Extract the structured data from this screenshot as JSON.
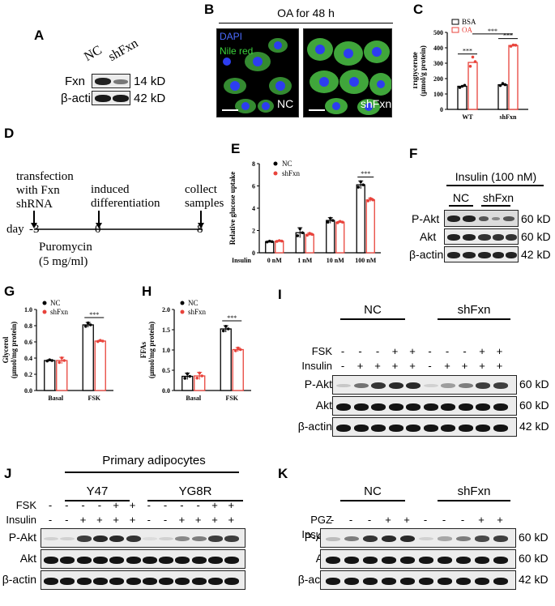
{
  "panels": {
    "A": {
      "label": "A",
      "cond": [
        "NC",
        "shFxn"
      ],
      "rows": [
        "Fxn",
        "β-actin"
      ],
      "sizes": [
        "14 kD",
        "42 kD"
      ]
    },
    "B": {
      "label": "B",
      "title": "OA for 48 h",
      "stain1": "DAPI",
      "stain2": "Nile red",
      "img1": "NC",
      "img2": "shFxn"
    },
    "C": {
      "label": "C"
    },
    "D": {
      "label": "D",
      "step1": [
        "transfection",
        "with Fxn",
        "shRNA"
      ],
      "step2": [
        "induced",
        "differentiation"
      ],
      "step3": [
        "collect",
        "samples"
      ],
      "day_label": "day",
      "days": [
        "-3",
        "0",
        "8"
      ],
      "drug": [
        "Puromycin",
        "(5 mg/ml)"
      ]
    },
    "E": {
      "label": "E"
    },
    "F": {
      "label": "F",
      "header": "Insulin (100 nM)",
      "groups": [
        "NC",
        "shFxn"
      ],
      "rows": [
        "P-Akt",
        "Akt",
        "β-actin"
      ],
      "sizes": [
        "60 kD",
        "60 kD",
        "42 kD"
      ]
    },
    "G": {
      "label": "G"
    },
    "H": {
      "label": "H"
    },
    "I": {
      "label": "I",
      "groups": [
        "NC",
        "shFxn"
      ],
      "rows": [
        "FSK",
        "Insulin"
      ],
      "fsk": [
        "-",
        "-",
        "-",
        "+",
        "+",
        "-",
        "-",
        "-",
        "+",
        "+"
      ],
      "insulin": [
        "-",
        "+",
        "+",
        "+",
        "+",
        "-",
        "+",
        "+",
        "+",
        "+"
      ],
      "blots": [
        "P-Akt",
        "Akt",
        "β-actin"
      ],
      "sizes": [
        "60 kD",
        "60 kD",
        "42 kD"
      ]
    },
    "J": {
      "label": "J",
      "title": "Primary adipocytes",
      "groups": [
        "Y47",
        "YG8R"
      ],
      "rows": [
        "FSK",
        "Insulin"
      ],
      "fsk": [
        "-",
        "-",
        "-",
        "-",
        "+",
        "+",
        "-",
        "-",
        "-",
        "-",
        "+",
        "+"
      ],
      "insulin": [
        "-",
        "-",
        "+",
        "+",
        "+",
        "+",
        "-",
        "-",
        "+",
        "+",
        "+",
        "+"
      ],
      "blots": [
        "P-Akt",
        "Akt",
        "β-actin"
      ]
    },
    "K": {
      "label": "K",
      "groups": [
        "NC",
        "shFxn"
      ],
      "rows": [
        "PGZ",
        "Insulin"
      ],
      "pgz": [
        "-",
        "-",
        "-",
        "+",
        "+",
        "-",
        "-",
        "-",
        "+",
        "+"
      ],
      "insulin": [
        "-",
        "+",
        "+",
        "+",
        "+",
        "-",
        "+",
        "+",
        "+",
        "+"
      ],
      "blots": [
        "P-Akt",
        "Akt",
        "β-actin"
      ],
      "sizes": [
        "60 kD",
        "60 kD",
        "42 kD"
      ]
    }
  },
  "chart_data": [
    {
      "panel": "C",
      "type": "bar",
      "categories": [
        "WT",
        "shFxn"
      ],
      "ylabel": "Triglyceride (μmol/g protein)",
      "ylim": [
        0,
        500
      ],
      "yticks": [
        0,
        100,
        200,
        300,
        400,
        500
      ],
      "series": [
        {
          "name": "BSA",
          "values": [
            150,
            160
          ],
          "points": [
            [
              142,
              150,
              156
            ],
            [
              155,
              168,
              160
            ]
          ]
        },
        {
          "name": "OA",
          "values": [
            305,
            415
          ],
          "points": [
            [
              280,
              340,
              310
            ],
            [
              410,
              418,
              417
            ]
          ]
        }
      ],
      "significance": [
        "***",
        "***",
        "***",
        "***"
      ],
      "colors": {
        "BSA": "#000000",
        "OA": "#e8433b"
      }
    },
    {
      "panel": "E",
      "type": "bar",
      "categories": [
        "0 nM",
        "1 nM",
        "10 nM",
        "100 nM"
      ],
      "xprefix": "Insulin",
      "ylabel": "Relative glucose uptake",
      "ylim": [
        0,
        8
      ],
      "yticks": [
        0,
        2,
        4,
        6,
        8
      ],
      "series": [
        {
          "name": "NC",
          "values": [
            1.0,
            1.8,
            2.9,
            6.1
          ],
          "err": [
            0.05,
            0.45,
            0.25,
            0.35
          ]
        },
        {
          "name": "shFxn",
          "values": [
            1.05,
            1.65,
            2.75,
            4.75
          ],
          "err": [
            0.05,
            0.12,
            0.08,
            0.15
          ]
        }
      ],
      "significance": "***",
      "colors": {
        "NC": "#000000",
        "shFxn": "#e8433b"
      }
    },
    {
      "panel": "G",
      "type": "bar",
      "categories": [
        "Basal",
        "FSK"
      ],
      "ylabel": "Glycerol (μmol/mg protein)",
      "ylim": [
        0,
        1.0
      ],
      "yticks": [
        0.0,
        0.2,
        0.4,
        0.6,
        0.8,
        1.0
      ],
      "series": [
        {
          "name": "NC",
          "values": [
            0.37,
            0.81
          ],
          "err": [
            0.01,
            0.03
          ]
        },
        {
          "name": "shFxn",
          "values": [
            0.37,
            0.61
          ],
          "err": [
            0.04,
            0.01
          ]
        }
      ],
      "significance": "***",
      "colors": {
        "NC": "#000000",
        "shFxn": "#e8433b"
      }
    },
    {
      "panel": "H",
      "type": "bar",
      "categories": [
        "Basal",
        "FSK"
      ],
      "ylabel": "FFAs (μmol/mg protein)",
      "ylim": [
        0,
        2.0
      ],
      "yticks": [
        0.0,
        0.5,
        1.0,
        1.5,
        2.0
      ],
      "series": [
        {
          "name": "NC",
          "values": [
            0.35,
            1.52
          ],
          "err": [
            0.08,
            0.08
          ]
        },
        {
          "name": "shFxn",
          "values": [
            0.36,
            1.01
          ],
          "err": [
            0.09,
            0.05
          ]
        }
      ],
      "significance": "***",
      "colors": {
        "NC": "#000000",
        "shFxn": "#e8433b"
      }
    }
  ]
}
